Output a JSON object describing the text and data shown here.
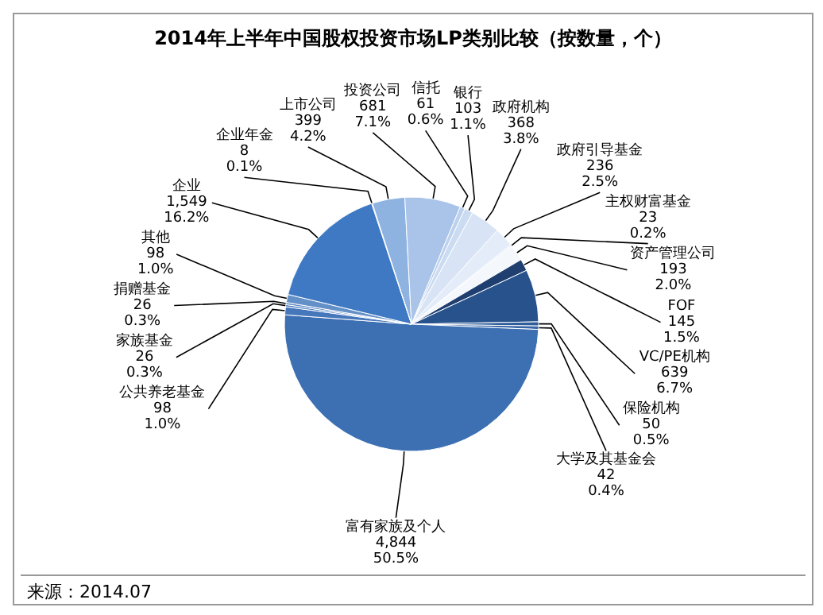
{
  "chart_data": {
    "type": "pie",
    "title": "2014年上半年中国股权投资市场LP类别比较（按数量，个）",
    "categories": [
      "上市公司",
      "投资公司",
      "信托",
      "银行",
      "政府机构",
      "政府引导基金",
      "主权财富基金",
      "资产管理公司",
      "FOF",
      "VC/PE机构",
      "保险机构",
      "大学及其基金会",
      "富有家族及个人",
      "公共养老基金",
      "家族基金",
      "捐赠基金",
      "其他",
      "企业",
      "企业年金"
    ],
    "values": [
      399,
      681,
      61,
      103,
      368,
      236,
      23,
      193,
      145,
      639,
      50,
      42,
      4844,
      98,
      26,
      26,
      98,
      1549,
      8
    ],
    "value_labels": [
      "399\n4.2%",
      "681\n7.1%",
      "61\n0.6%",
      "103\n1.1%",
      "368\n3.8%",
      "236\n2.5%",
      "23\n0.2%",
      "193\n2.0%",
      "145\n1.5%",
      "639\n6.7%",
      "50\n0.5%",
      "42\n0.4%",
      "4,844\n50.5%",
      "98\n1.0%",
      "26\n0.3%",
      "26\n0.3%",
      "98\n1.0%",
      "1,549\n16.2%",
      "8\n0.1%"
    ],
    "colors": [
      "#8fb3e0",
      "#a9c4e8",
      "#bcd1ee",
      "#cbdcf2",
      "#d8e4f5",
      "#e3ecf8",
      "#edf2fa",
      "#f4f7fc",
      "#1f3f70",
      "#27528c",
      "#2f5d9a",
      "#3766a6",
      "#3d6fb3",
      "#4677bb",
      "#5080c0",
      "#5a88c5",
      "#6490c8",
      "#3f79c4",
      "#6f9ad0"
    ],
    "annotations": [
      "来源：2014.07"
    ]
  }
}
